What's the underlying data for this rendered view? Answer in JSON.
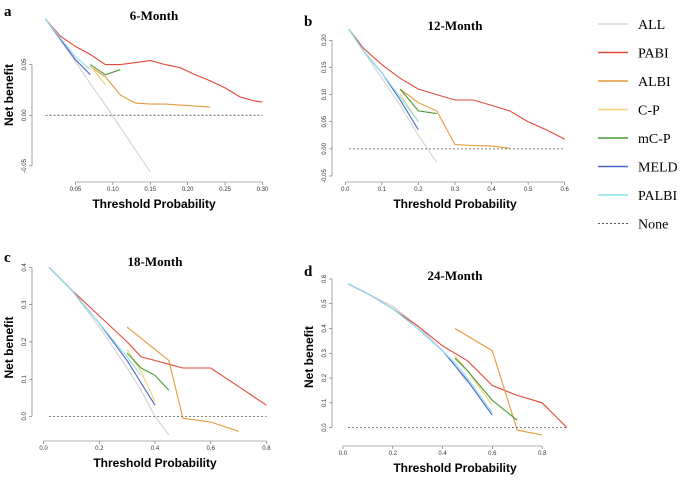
{
  "chart_data": [
    {
      "type": "line",
      "label": "a",
      "title": "6-Month",
      "xlabel": "Threshold Probability",
      "ylabel": "Net benefit",
      "xlim": [
        0,
        0.31
      ],
      "ylim": [
        -0.06,
        0.1
      ],
      "xticks": [
        0.05,
        {
          "value": 0.1,
          "label": "0.10"
        },
        0.15,
        {
          "value": 0.2,
          "label": "0.20"
        },
        0.25,
        {
          "value": 0.3,
          "label": "0.30"
        }
      ],
      "yticks": [
        -0.05,
        {
          "value": 0,
          "label": "0.00"
        },
        0.05
      ],
      "x": [
        0.01,
        0.03,
        0.05,
        0.07,
        0.09,
        0.11,
        0.13,
        0.15,
        0.17,
        0.19,
        0.21,
        0.23,
        0.25,
        0.27,
        0.29,
        0.3
      ],
      "series": [
        {
          "name": "ALL",
          "color": "#d3d3d3",
          "values": [
            0.095,
            0.074,
            0.053,
            0.031,
            0.01,
            -0.012,
            -0.034,
            -0.056,
            null,
            null,
            null,
            null,
            null,
            null,
            null,
            null
          ]
        },
        {
          "name": "PABI",
          "color": "#e04b3a",
          "values": [
            0.095,
            0.078,
            0.068,
            0.06,
            0.05,
            0.05,
            0.052,
            0.054,
            0.05,
            0.047,
            0.04,
            0.034,
            0.027,
            0.018,
            0.014,
            0.013
          ]
        },
        {
          "name": "ALBI",
          "color": "#e69a3c",
          "values": [
            null,
            null,
            null,
            0.048,
            0.038,
            0.02,
            0.012,
            0.011,
            0.011,
            0.01,
            0.009,
            0.008,
            null,
            null,
            null,
            null
          ]
        },
        {
          "name": "C-P",
          "color": "#f2d27a",
          "values": [
            null,
            null,
            null,
            0.049,
            0.03,
            null,
            null,
            null,
            null,
            null,
            null,
            null,
            null,
            null,
            null,
            null
          ]
        },
        {
          "name": "mC-P",
          "color": "#4a9a2f",
          "values": [
            null,
            null,
            null,
            0.05,
            0.04,
            0.045,
            null,
            null,
            null,
            null,
            null,
            null,
            null,
            null,
            null,
            null
          ]
        },
        {
          "name": "MELD",
          "color": "#4a63c8",
          "values": [
            0.095,
            0.075,
            0.055,
            0.04,
            null,
            null,
            null,
            null,
            null,
            null,
            null,
            null,
            null,
            null,
            null,
            null
          ]
        },
        {
          "name": "PALBI",
          "color": "#8fe3ee",
          "values": [
            0.095,
            0.076,
            0.058,
            0.045,
            null,
            null,
            null,
            null,
            null,
            null,
            null,
            null,
            null,
            null,
            null,
            null
          ]
        },
        {
          "name": "None",
          "color": "#555555",
          "dashed": true,
          "values": [
            0,
            0,
            0,
            0,
            0,
            0,
            0,
            0,
            0,
            0,
            0,
            0,
            0,
            0,
            0,
            0
          ]
        }
      ]
    },
    {
      "type": "line",
      "label": "b",
      "title": "12-Month",
      "xlabel": "Threshold Probability",
      "xlim": [
        -0.02,
        0.62
      ],
      "ylim": [
        -0.05,
        0.23
      ],
      "xticks": [
        {
          "value": 0,
          "label": "0.0"
        },
        0.1,
        0.2,
        0.3,
        0.4,
        0.5,
        0.6
      ],
      "yticks": [
        -0.05,
        {
          "value": 0,
          "label": "0.00"
        },
        0.05,
        {
          "value": 0.1,
          "label": "0.10"
        },
        0.15,
        {
          "value": 0.2,
          "label": "0.20"
        }
      ],
      "x": [
        0.01,
        0.05,
        0.1,
        0.15,
        0.2,
        0.25,
        0.3,
        0.35,
        0.4,
        0.45,
        0.5,
        0.55,
        0.6
      ],
      "series": [
        {
          "name": "ALL",
          "color": "#d3d3d3",
          "values": [
            0.22,
            0.18,
            0.13,
            0.08,
            0.025,
            -0.025,
            null,
            null,
            null,
            null,
            null,
            null,
            null
          ]
        },
        {
          "name": "PABI",
          "color": "#e04b3a",
          "values": [
            0.22,
            0.185,
            0.155,
            0.13,
            0.11,
            0.1,
            0.09,
            0.09,
            0.08,
            0.07,
            0.05,
            0.035,
            0.018
          ]
        },
        {
          "name": "ALBI",
          "color": "#e69a3c",
          "values": [
            null,
            null,
            null,
            0.11,
            0.085,
            0.07,
            0.008,
            0.006,
            0.005,
            0.001,
            null,
            null,
            null
          ]
        },
        {
          "name": "C-P",
          "color": "#f2d27a",
          "values": [
            null,
            null,
            null,
            0.1,
            0.05,
            null,
            null,
            null,
            null,
            null,
            null,
            null,
            null
          ]
        },
        {
          "name": "mC-P",
          "color": "#4a9a2f",
          "values": [
            null,
            null,
            null,
            0.11,
            0.07,
            0.065,
            null,
            null,
            null,
            null,
            null,
            null,
            null
          ]
        },
        {
          "name": "MELD",
          "color": "#4a63c8",
          "values": [
            0.22,
            0.18,
            0.14,
            0.09,
            0.035,
            null,
            null,
            null,
            null,
            null,
            null,
            null,
            null
          ]
        },
        {
          "name": "PALBI",
          "color": "#8fe3ee",
          "values": [
            0.22,
            0.18,
            0.14,
            0.095,
            0.05,
            null,
            null,
            null,
            null,
            null,
            null,
            null,
            null
          ]
        },
        {
          "name": "None",
          "color": "#555555",
          "dashed": true,
          "values": [
            0,
            0,
            0,
            0,
            0,
            0,
            0,
            0,
            0,
            0,
            0,
            0,
            0
          ]
        }
      ]
    },
    {
      "type": "line",
      "label": "c",
      "title": "18-Month",
      "xlabel": "Threshold Probability",
      "ylabel": "Net benefit",
      "xlim": [
        -0.02,
        0.82
      ],
      "ylim": [
        -0.05,
        0.42
      ],
      "xticks": [
        {
          "value": 0,
          "label": "0.0"
        },
        0.2,
        0.4,
        0.6,
        0.8
      ],
      "yticks": [
        {
          "value": 0,
          "label": "0.0"
        },
        0.1,
        0.2,
        0.3,
        0.4
      ],
      "x": [
        0.02,
        0.1,
        0.2,
        0.3,
        0.35,
        0.4,
        0.45,
        0.5,
        0.6,
        0.7,
        0.8
      ],
      "series": [
        {
          "name": "ALL",
          "color": "#d3d3d3",
          "values": [
            0.4,
            0.34,
            0.24,
            0.13,
            0.07,
            0,
            -0.05,
            null,
            null,
            null,
            null
          ]
        },
        {
          "name": "PABI",
          "color": "#e04b3a",
          "values": [
            0.4,
            0.34,
            0.27,
            0.2,
            0.16,
            0.15,
            0.14,
            0.13,
            0.13,
            0.08,
            0.03
          ]
        },
        {
          "name": "ALBI",
          "color": "#e69a3c",
          "values": [
            null,
            null,
            null,
            0.24,
            0.21,
            0.18,
            0.15,
            -0.005,
            -0.015,
            -0.04,
            null
          ]
        },
        {
          "name": "C-P",
          "color": "#f2d27a",
          "values": [
            null,
            null,
            null,
            0.18,
            0.12,
            0.04,
            null,
            null,
            null,
            null,
            null
          ]
        },
        {
          "name": "mC-P",
          "color": "#4a9a2f",
          "values": [
            null,
            null,
            null,
            0.17,
            0.13,
            0.11,
            0.07,
            null,
            null,
            null,
            null
          ]
        },
        {
          "name": "MELD",
          "color": "#4a63c8",
          "values": [
            0.4,
            0.34,
            0.25,
            0.15,
            0.09,
            0.03,
            null,
            null,
            null,
            null,
            null
          ]
        },
        {
          "name": "PALBI",
          "color": "#8fe3ee",
          "values": [
            0.4,
            0.34,
            0.25,
            0.16,
            0.11,
            null,
            null,
            null,
            null,
            null,
            null
          ]
        },
        {
          "name": "None",
          "color": "#555555",
          "dashed": true,
          "values": [
            0,
            0,
            0,
            0,
            0,
            0,
            0,
            0,
            0,
            0,
            0
          ]
        }
      ]
    },
    {
      "type": "line",
      "label": "d",
      "title": "24-Month",
      "xlabel": "Threshold Probability",
      "ylabel": "Net benefit",
      "xlim": [
        -0.02,
        0.92
      ],
      "ylim": [
        -0.05,
        0.62
      ],
      "xticks": [
        {
          "value": 0,
          "label": "0.0"
        },
        0.2,
        0.4,
        0.6,
        0.8
      ],
      "yticks": [
        {
          "value": 0,
          "label": "0.0"
        },
        0.1,
        0.2,
        0.3,
        0.4,
        0.5,
        0.6
      ],
      "x": [
        0.02,
        0.1,
        0.2,
        0.3,
        0.4,
        0.45,
        0.5,
        0.6,
        0.7,
        0.8,
        0.9
      ],
      "series": [
        {
          "name": "ALL",
          "color": "#d3d3d3",
          "values": [
            0.58,
            0.54,
            0.49,
            0.41,
            0.31,
            0.25,
            0.18,
            null,
            null,
            null,
            null
          ]
        },
        {
          "name": "PABI",
          "color": "#e04b3a",
          "values": [
            0.58,
            0.54,
            0.48,
            0.41,
            0.33,
            0.3,
            0.27,
            0.17,
            0.13,
            0.1,
            0
          ]
        },
        {
          "name": "ALBI",
          "color": "#e69a3c",
          "values": [
            null,
            null,
            null,
            null,
            null,
            0.4,
            0.37,
            0.31,
            -0.01,
            -0.03,
            null
          ]
        },
        {
          "name": "C-P",
          "color": "#f2d27a",
          "values": [
            null,
            null,
            null,
            null,
            null,
            0.29,
            0.23,
            0.09,
            null,
            null,
            null
          ]
        },
        {
          "name": "mC-P",
          "color": "#4a9a2f",
          "values": [
            null,
            null,
            null,
            null,
            null,
            0.28,
            0.23,
            0.11,
            0.03,
            null,
            null
          ]
        },
        {
          "name": "MELD",
          "color": "#4a63c8",
          "values": [
            0.58,
            0.54,
            0.48,
            0.4,
            0.31,
            0.25,
            0.19,
            0.05,
            null,
            null,
            null
          ]
        },
        {
          "name": "PALBI",
          "color": "#8fe3ee",
          "values": [
            0.58,
            0.54,
            0.48,
            0.4,
            0.31,
            0.26,
            0.2,
            0.06,
            null,
            null,
            null
          ]
        },
        {
          "name": "None",
          "color": "#555555",
          "dashed": true,
          "values": [
            0,
            0,
            0,
            0,
            0,
            0,
            0,
            0,
            0,
            0,
            0
          ]
        }
      ]
    }
  ]
}
